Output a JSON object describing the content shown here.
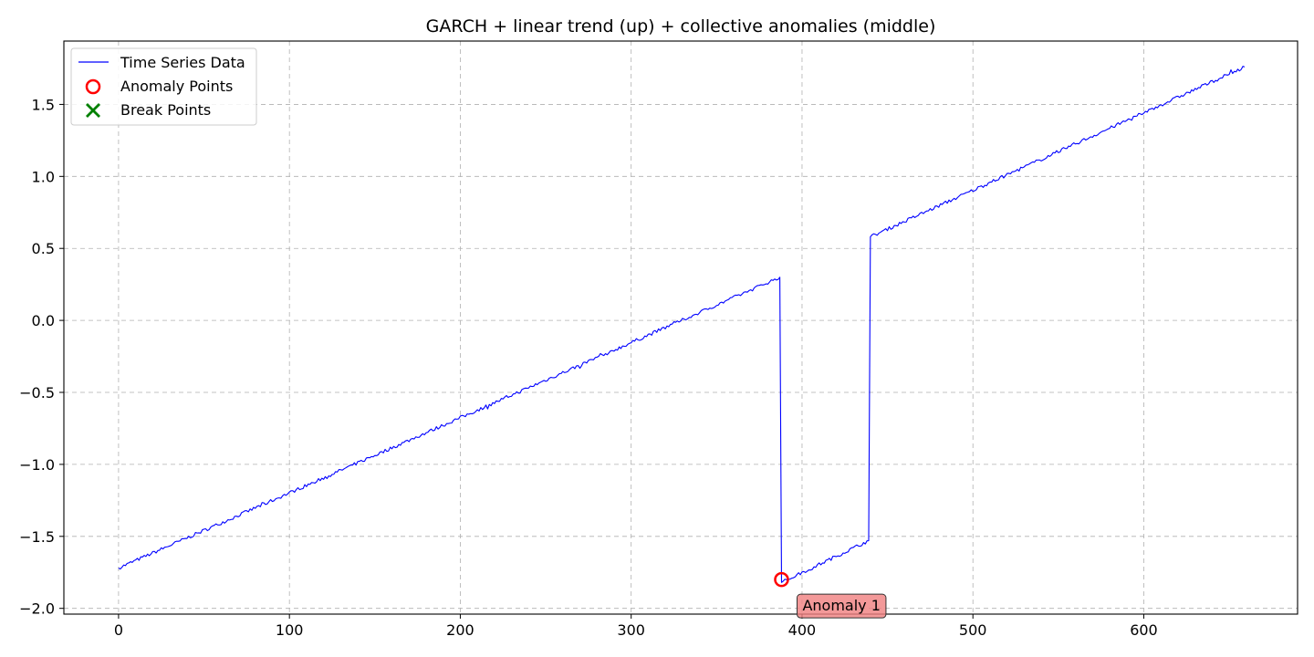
{
  "chart_data": {
    "type": "line",
    "title": "GARCH + linear trend (up) + collective anomalies (middle)",
    "xlabel": "",
    "ylabel": "",
    "xlim": [
      -32,
      690
    ],
    "ylim": [
      -2.04,
      1.94
    ],
    "grid": true,
    "legend_position": "top-left",
    "x_ticks": [
      0,
      100,
      200,
      300,
      400,
      500,
      600
    ],
    "y_ticks": [
      -2.0,
      -1.5,
      -1.0,
      -0.5,
      0.0,
      0.5,
      1.0,
      1.5
    ],
    "y_tick_labels": [
      "−2.0",
      "−1.5",
      "−1.0",
      "−0.5",
      "0.0",
      "0.5",
      "1.0",
      "1.5"
    ],
    "series": [
      {
        "name": "Time Series Data",
        "color": "#0000ff",
        "segments": [
          {
            "x_start": 0,
            "x_end": 387,
            "y_start": -1.72,
            "y_end": 0.3
          },
          {
            "x_start": 388,
            "x_end": 439,
            "y_start": -1.82,
            "y_end": -1.53
          },
          {
            "x_start": 440,
            "x_end": 659,
            "y_start": 0.58,
            "y_end": 1.76
          }
        ],
        "noise_amplitude": 0.012
      }
    ],
    "anomaly_points": {
      "name": "Anomaly Points",
      "color": "#ff0000",
      "points": [
        {
          "x": 388,
          "y": -1.8
        }
      ]
    },
    "break_points": {
      "name": "Break Points",
      "color": "#008000",
      "points": []
    },
    "annotations": [
      {
        "text": "Anomaly 1",
        "x": 388,
        "y": -1.8,
        "bg_color": "#f08080"
      }
    ]
  }
}
